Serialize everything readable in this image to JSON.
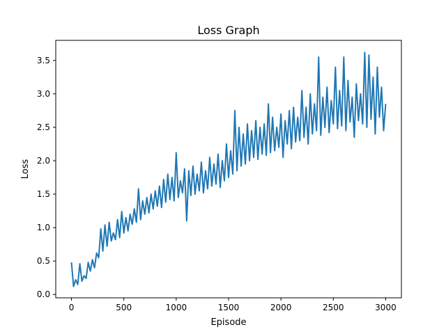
{
  "chart_data": {
    "type": "line",
    "title": "Loss Graph",
    "xlabel": "Episode",
    "ylabel": "Loss",
    "xlim": [
      -150,
      3150
    ],
    "ylim": [
      -0.05,
      3.8
    ],
    "xticks": [
      0,
      500,
      1000,
      1500,
      2000,
      2500,
      3000
    ],
    "xtick_labels": [
      "0",
      "500",
      "1000",
      "1500",
      "2000",
      "2500",
      "3000"
    ],
    "yticks": [
      0.0,
      0.5,
      1.0,
      1.5,
      2.0,
      2.5,
      3.0,
      3.5
    ],
    "ytick_labels": [
      "0.0",
      "0.5",
      "1.0",
      "1.5",
      "2.0",
      "2.5",
      "3.0",
      "3.5"
    ],
    "grid": false,
    "series": [
      {
        "color": "#1f77b4",
        "x": [
          0,
          20,
          40,
          60,
          80,
          100,
          120,
          140,
          160,
          180,
          200,
          220,
          240,
          260,
          280,
          300,
          320,
          340,
          360,
          380,
          400,
          420,
          440,
          460,
          480,
          500,
          520,
          540,
          560,
          580,
          600,
          620,
          640,
          660,
          680,
          700,
          720,
          740,
          760,
          780,
          800,
          820,
          840,
          860,
          880,
          900,
          920,
          940,
          960,
          980,
          1000,
          1020,
          1040,
          1060,
          1080,
          1100,
          1120,
          1140,
          1160,
          1180,
          1200,
          1220,
          1240,
          1260,
          1280,
          1300,
          1320,
          1340,
          1360,
          1380,
          1400,
          1420,
          1440,
          1460,
          1480,
          1500,
          1520,
          1540,
          1560,
          1580,
          1600,
          1620,
          1640,
          1660,
          1680,
          1700,
          1720,
          1740,
          1760,
          1780,
          1800,
          1820,
          1840,
          1860,
          1880,
          1900,
          1920,
          1940,
          1960,
          1980,
          2000,
          2020,
          2040,
          2060,
          2080,
          2100,
          2120,
          2140,
          2160,
          2180,
          2200,
          2220,
          2240,
          2260,
          2280,
          2300,
          2320,
          2340,
          2360,
          2380,
          2400,
          2420,
          2440,
          2460,
          2480,
          2500,
          2520,
          2540,
          2560,
          2580,
          2600,
          2620,
          2640,
          2660,
          2680,
          2700,
          2720,
          2740,
          2760,
          2780,
          2800,
          2820,
          2840,
          2860,
          2880,
          2900,
          2920,
          2940,
          2960,
          2980,
          3000
        ],
        "y": [
          0.48,
          0.12,
          0.22,
          0.15,
          0.46,
          0.2,
          0.28,
          0.24,
          0.48,
          0.35,
          0.52,
          0.4,
          0.62,
          0.55,
          0.98,
          0.65,
          1.04,
          0.72,
          1.08,
          0.8,
          0.92,
          0.82,
          1.12,
          0.85,
          1.24,
          0.92,
          1.15,
          0.95,
          1.2,
          1.05,
          1.28,
          1.08,
          1.58,
          1.12,
          1.4,
          1.2,
          1.45,
          1.22,
          1.5,
          1.28,
          1.55,
          1.32,
          1.62,
          1.3,
          1.72,
          1.38,
          1.8,
          1.42,
          1.75,
          1.4,
          2.12,
          1.45,
          1.7,
          1.52,
          1.88,
          1.1,
          1.85,
          1.48,
          1.92,
          1.5,
          1.8,
          1.55,
          1.98,
          1.52,
          1.85,
          1.58,
          2.05,
          1.62,
          1.95,
          1.65,
          2.1,
          1.6,
          2.0,
          1.7,
          2.25,
          1.75,
          2.15,
          1.8,
          2.75,
          1.85,
          2.5,
          1.92,
          2.4,
          1.95,
          2.55,
          2.0,
          2.45,
          2.05,
          2.6,
          2.02,
          2.5,
          2.1,
          2.55,
          2.08,
          2.85,
          2.12,
          2.65,
          2.15,
          2.5,
          2.2,
          2.7,
          2.05,
          2.6,
          2.25,
          2.75,
          2.18,
          2.8,
          2.28,
          2.65,
          2.3,
          3.05,
          2.35,
          2.8,
          2.25,
          3.0,
          2.4,
          2.85,
          2.45,
          3.55,
          2.38,
          2.95,
          2.5,
          3.1,
          2.42,
          2.9,
          2.55,
          3.4,
          2.48,
          3.05,
          2.52,
          3.55,
          2.45,
          3.2,
          2.58,
          2.95,
          2.35,
          3.15,
          2.6,
          3.0,
          2.55,
          3.62,
          2.5,
          3.58,
          2.62,
          3.25,
          2.4,
          3.4,
          2.65,
          3.1,
          2.45,
          2.85
        ]
      }
    ]
  }
}
